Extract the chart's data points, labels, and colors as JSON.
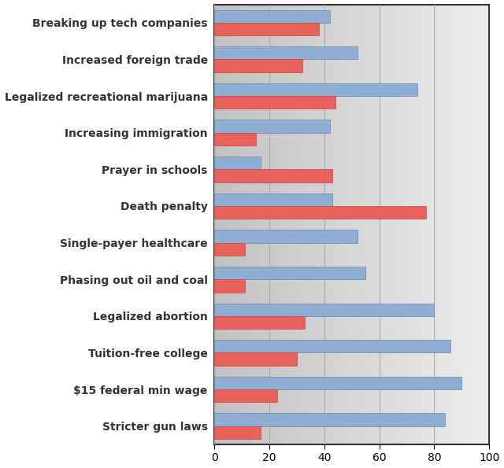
{
  "categories": [
    "Breaking up tech companies",
    "Increased foreign trade",
    "Legalized recreational marijuana",
    "Increasing immigration",
    "Prayer in schools",
    "Death penalty",
    "Single-payer healthcare",
    "Phasing out oil and coal",
    "Legalized abortion",
    "Tuition-free college",
    "$15 federal min wage",
    "Stricter gun laws"
  ],
  "blue_values": [
    42,
    52,
    74,
    42,
    17,
    43,
    52,
    55,
    80,
    86,
    90,
    84
  ],
  "red_values": [
    38,
    32,
    44,
    15,
    43,
    77,
    11,
    11,
    33,
    30,
    23,
    17
  ],
  "blue_color": "#8FAED4",
  "red_color": "#E8615A",
  "bg_left_color": "#C8C8C8",
  "bg_right_color": "#E8E8E8",
  "fig_bg_color": "#FFFFFF",
  "grid_color": "#AAAAAA",
  "xlim": [
    0,
    100
  ],
  "xticks": [
    0,
    20,
    40,
    60,
    80,
    100
  ],
  "bar_height": 0.35,
  "figsize": [
    6.4,
    5.95
  ],
  "dpi": 100
}
